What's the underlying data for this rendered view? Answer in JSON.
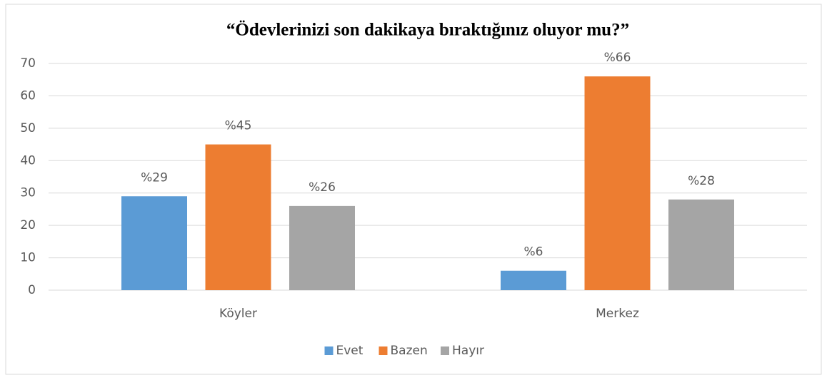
{
  "chart_data": {
    "type": "bar",
    "title": "“Ödevlerinizi son dakikaya bıraktığınız oluyor mu?”",
    "categories": [
      "Köyler",
      "Merkez"
    ],
    "series": [
      {
        "name": "Evet",
        "color": "#5b9bd5",
        "values": [
          29,
          6
        ],
        "value_labels": [
          "%29",
          "%6"
        ]
      },
      {
        "name": "Bazen",
        "color": "#ed7d31",
        "values": [
          45,
          66
        ],
        "value_labels": [
          "%45",
          "%66"
        ]
      },
      {
        "name": "Hayır",
        "color": "#a5a5a5",
        "values": [
          26,
          28
        ],
        "value_labels": [
          "%26",
          "%28"
        ]
      }
    ],
    "ylim": [
      0,
      70
    ],
    "yticks": [
      0,
      10,
      20,
      30,
      40,
      50,
      60,
      70
    ],
    "grid": true,
    "legend": "bottom"
  }
}
